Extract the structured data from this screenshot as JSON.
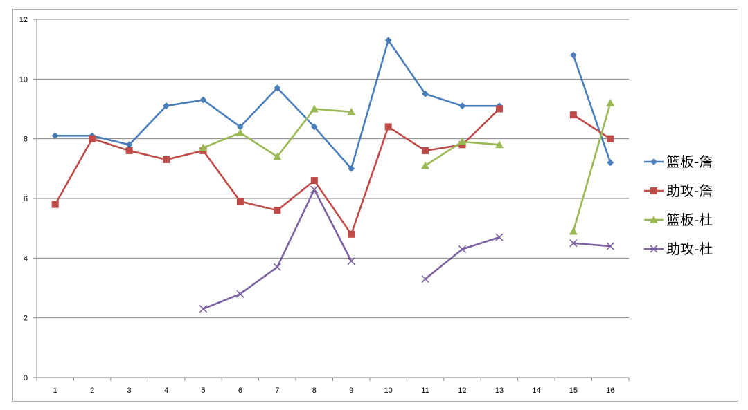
{
  "chart_data": {
    "type": "line",
    "title": "",
    "xlabel": "",
    "ylabel": "",
    "categories": [
      "1",
      "2",
      "3",
      "4",
      "5",
      "6",
      "7",
      "8",
      "9",
      "10",
      "11",
      "12",
      "13",
      "14",
      "15",
      "16"
    ],
    "ylim": [
      0,
      12
    ],
    "yticks": [
      "0",
      "2",
      "4",
      "6",
      "8",
      "10",
      "12"
    ],
    "grid": "horizontal",
    "legend_position": "right",
    "series": [
      {
        "name": "篮板-詹",
        "color": "#4a7ebb",
        "marker": "diamond",
        "values": [
          8.1,
          8.1,
          7.8,
          9.1,
          9.3,
          8.4,
          9.7,
          8.4,
          7.0,
          11.3,
          9.5,
          9.1,
          9.1,
          null,
          10.8,
          7.2
        ]
      },
      {
        "name": "助攻-詹",
        "color": "#be4b48",
        "marker": "square",
        "values": [
          5.8,
          8.0,
          7.6,
          7.3,
          7.6,
          5.9,
          5.6,
          6.6,
          4.8,
          8.4,
          7.6,
          7.8,
          9.0,
          null,
          8.8,
          8.0
        ]
      },
      {
        "name": "篮板-杜",
        "color": "#98b954",
        "marker": "triangle",
        "values": [
          null,
          null,
          null,
          null,
          7.7,
          8.2,
          7.4,
          9.0,
          8.9,
          null,
          7.1,
          7.9,
          7.8,
          null,
          4.9,
          9.2
        ]
      },
      {
        "name": "助攻-杜",
        "color": "#7d60a0",
        "marker": "x",
        "values": [
          null,
          null,
          null,
          null,
          2.3,
          2.8,
          3.7,
          6.3,
          3.9,
          null,
          3.3,
          4.3,
          4.7,
          null,
          4.5,
          4.4
        ]
      }
    ]
  }
}
